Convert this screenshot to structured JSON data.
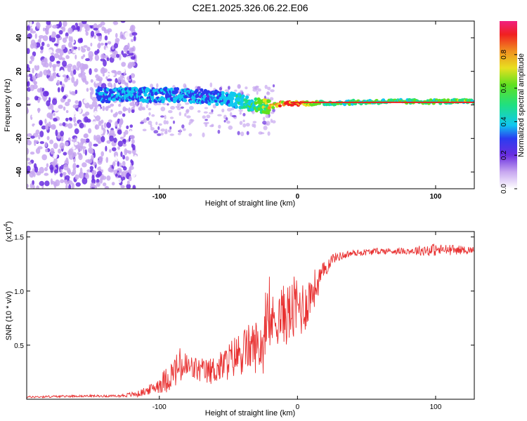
{
  "figure_title": "C2E1.2025.326.06.22.E06",
  "colors": {
    "snr_line": "#e83030",
    "spectrum_low": "#a060e8",
    "spectrum_mid": "#30e080",
    "spectrum_high": "#e02030",
    "axis": "#000000"
  },
  "chart_data": [
    {
      "type": "heatmap",
      "title": "C2E1.2025.326.06.22.E06",
      "xlabel": "Height of straight line (km)",
      "ylabel": "Frequency (Hz)",
      "xlim": [
        -196,
        128
      ],
      "ylim": [
        -50,
        50
      ],
      "x_ticks": [
        -100,
        0,
        100
      ],
      "y_ticks": [
        -40,
        -20,
        0,
        20,
        40
      ],
      "x_tick_labels": [
        "-100",
        "0",
        "100"
      ],
      "y_tick_labels": [
        "-40",
        "-20",
        "0",
        "20",
        "40"
      ],
      "noise_region_x": [
        -196,
        -117
      ],
      "ridge": {
        "x": [
          -145,
          -130,
          -115,
          -100,
          -85,
          -70,
          -55,
          -40,
          -30,
          -20,
          -10,
          0,
          20,
          60,
          100,
          128
        ],
        "frequency_hz": [
          6,
          6,
          6,
          6,
          6,
          5,
          4,
          2,
          0,
          -1,
          1,
          1,
          1,
          2,
          2,
          2
        ],
        "amplitude": [
          0.38,
          0.4,
          0.42,
          0.42,
          0.4,
          0.38,
          0.42,
          0.5,
          0.6,
          0.8,
          0.95,
          0.92,
          0.6,
          0.6,
          0.62,
          0.65
        ]
      },
      "colorbar": {
        "label": "Normalized spectral amplitude",
        "range": [
          0,
          1
        ],
        "ticks": [
          0.0,
          0.2,
          0.4,
          0.6,
          0.8
        ],
        "tick_labels": [
          "0.0",
          "0.2",
          "0.4",
          "0.6",
          "0.8"
        ]
      }
    },
    {
      "type": "line",
      "xlabel": "Height of straight line (km)",
      "ylabel": "SNR (10 * v/v)",
      "y_multiplier_label": "(x10",
      "y_multiplier_exponent": "4",
      "y_multiplier_close": ")",
      "xlim": [
        -196,
        128
      ],
      "ylim": [
        0,
        1.55
      ],
      "x_ticks": [
        -100,
        0,
        100
      ],
      "y_ticks": [
        0.5,
        1.0,
        1.5
      ],
      "x_tick_labels": [
        "-100",
        "0",
        "100"
      ],
      "y_tick_labels": [
        "0.5",
        "1.0",
        "1.5"
      ],
      "series": [
        {
          "name": "SNR",
          "x": [
            -196,
            -160,
            -130,
            -115,
            -105,
            -95,
            -85,
            -75,
            -65,
            -55,
            -45,
            -35,
            -25,
            -20,
            -15,
            -10,
            -5,
            0,
            5,
            10,
            15,
            20,
            25,
            30,
            40,
            60,
            80,
            95,
            110,
            128
          ],
          "values": [
            0.02,
            0.03,
            0.03,
            0.05,
            0.1,
            0.18,
            0.3,
            0.28,
            0.25,
            0.3,
            0.4,
            0.48,
            0.5,
            0.7,
            0.75,
            0.78,
            0.8,
            0.85,
            0.85,
            0.98,
            1.08,
            1.2,
            1.3,
            1.32,
            1.35,
            1.37,
            1.37,
            1.38,
            1.38,
            1.38
          ],
          "noise": [
            0.01,
            0.01,
            0.01,
            0.03,
            0.05,
            0.12,
            0.18,
            0.12,
            0.12,
            0.15,
            0.2,
            0.22,
            0.28,
            0.25,
            0.25,
            0.28,
            0.3,
            0.32,
            0.25,
            0.2,
            0.15,
            0.08,
            0.05,
            0.04,
            0.03,
            0.03,
            0.03,
            0.06,
            0.05,
            0.03
          ]
        }
      ]
    }
  ]
}
